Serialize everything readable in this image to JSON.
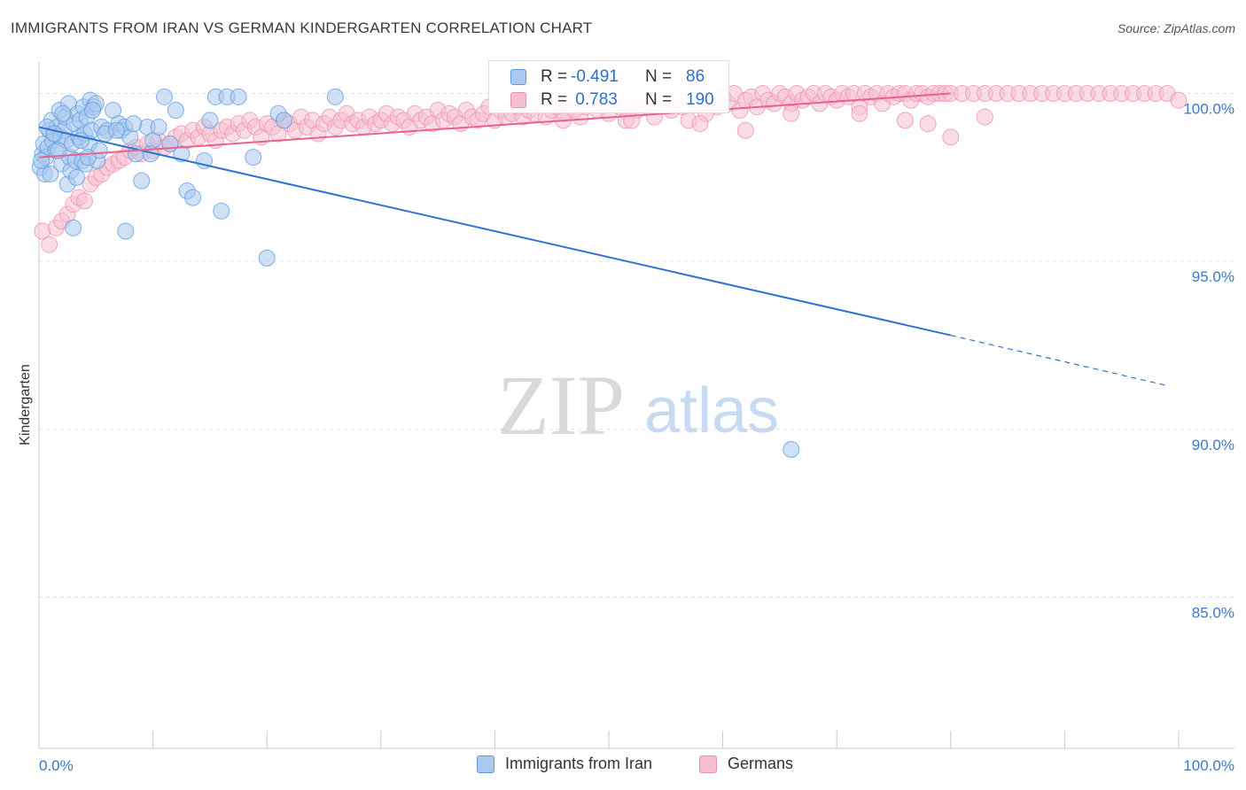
{
  "title": "IMMIGRANTS FROM IRAN VS GERMAN KINDERGARTEN CORRELATION CHART",
  "source": "Source: ZipAtlas.com",
  "watermark": {
    "zip": "ZIP",
    "atlas": "atlas"
  },
  "colors": {
    "blue": "#5b9be0",
    "blue_fill": "#a9c9ef",
    "blue_line": "#2f74d0",
    "pink": "#ee8fae",
    "pink_fill": "#f6bfd0",
    "pink_line": "#e8628d",
    "axis_label": "#3a78c9",
    "grid": "#e3e3e3"
  },
  "legend_top": [
    {
      "r_label": "R =",
      "r_value": "-0.491",
      "n_label": "N =",
      "n_value": "86"
    },
    {
      "r_label": "R =",
      "r_value": " 0.783",
      "n_label": "N =",
      "n_value": "190"
    }
  ],
  "legend_bottom": [
    "Immigrants from Iran",
    "Germans"
  ],
  "chart_data": {
    "type": "scatter",
    "title": "IMMIGRANTS FROM IRAN VS GERMAN KINDERGARTEN CORRELATION CHART",
    "xlabel": "",
    "ylabel": "Kindergarten",
    "x_tick_labels": [
      "0.0%",
      "100.0%"
    ],
    "y_tick_labels": [
      "100.0%",
      "95.0%",
      "90.0%",
      "85.0%"
    ],
    "xlim": [
      0,
      100
    ],
    "ylim": [
      80.5,
      100.7
    ],
    "grid": true,
    "legend_position": "top-center",
    "series": [
      {
        "name": "Immigrants from Iran",
        "color": "#5b9be0",
        "R": -0.491,
        "N": 86,
        "trend": {
          "x0": 0,
          "y0": 99.0,
          "x1": 80,
          "y1": 92.8,
          "dashed_to_x": 99,
          "dashed_to_y": 91.3
        },
        "points": [
          [
            0.1,
            97.8
          ],
          [
            0.3,
            98.2
          ],
          [
            0.4,
            98.5
          ],
          [
            0.5,
            97.6
          ],
          [
            0.6,
            98.1
          ],
          [
            0.8,
            98.4
          ],
          [
            0.9,
            98.9
          ],
          [
            1.1,
            99.2
          ],
          [
            1.2,
            98.6
          ],
          [
            1.4,
            98.8
          ],
          [
            1.5,
            98.3
          ],
          [
            1.6,
            99.0
          ],
          [
            1.8,
            99.5
          ],
          [
            1.9,
            98.7
          ],
          [
            2.0,
            97.9
          ],
          [
            2.2,
            98.9
          ],
          [
            2.3,
            99.3
          ],
          [
            2.4,
            98.6
          ],
          [
            2.5,
            97.3
          ],
          [
            2.6,
            99.7
          ],
          [
            2.7,
            98.1
          ],
          [
            2.8,
            97.7
          ],
          [
            2.9,
            98.5
          ],
          [
            3.0,
            96.0
          ],
          [
            3.1,
            99.1
          ],
          [
            3.2,
            98.0
          ],
          [
            3.3,
            97.5
          ],
          [
            3.4,
            99.4
          ],
          [
            3.5,
            98.7
          ],
          [
            3.6,
            99.2
          ],
          [
            3.8,
            98.0
          ],
          [
            3.9,
            99.6
          ],
          [
            4.0,
            98.8
          ],
          [
            4.1,
            97.9
          ],
          [
            4.2,
            99.3
          ],
          [
            4.4,
            98.5
          ],
          [
            4.5,
            99.8
          ],
          [
            4.6,
            98.9
          ],
          [
            4.8,
            99.6
          ],
          [
            5.0,
            99.7
          ],
          [
            5.1,
            98.0
          ],
          [
            5.3,
            98.3
          ],
          [
            5.5,
            99.0
          ],
          [
            6.0,
            98.9
          ],
          [
            6.5,
            99.5
          ],
          [
            7.0,
            99.1
          ],
          [
            7.2,
            98.9
          ],
          [
            7.5,
            99.0
          ],
          [
            7.6,
            95.9
          ],
          [
            8.0,
            98.7
          ],
          [
            8.5,
            98.2
          ],
          [
            9.0,
            97.4
          ],
          [
            9.5,
            99.0
          ],
          [
            10.0,
            98.6
          ],
          [
            10.5,
            99.0
          ],
          [
            11.0,
            99.9
          ],
          [
            11.5,
            98.5
          ],
          [
            12.0,
            99.5
          ],
          [
            12.5,
            98.2
          ],
          [
            13.0,
            97.1
          ],
          [
            13.5,
            96.9
          ],
          [
            14.5,
            98.0
          ],
          [
            15.0,
            99.2
          ],
          [
            15.5,
            99.9
          ],
          [
            16.0,
            96.5
          ],
          [
            16.5,
            99.9
          ],
          [
            17.5,
            99.9
          ],
          [
            18.8,
            98.1
          ],
          [
            20.0,
            95.1
          ],
          [
            21.0,
            99.4
          ],
          [
            21.5,
            99.2
          ],
          [
            26.0,
            99.9
          ],
          [
            66.0,
            89.4
          ],
          [
            0.2,
            98.0
          ],
          [
            0.7,
            99.0
          ],
          [
            1.0,
            97.6
          ],
          [
            1.3,
            98.8
          ],
          [
            1.7,
            98.3
          ],
          [
            2.1,
            99.4
          ],
          [
            3.7,
            98.6
          ],
          [
            4.3,
            98.1
          ],
          [
            4.7,
            99.5
          ],
          [
            5.8,
            98.8
          ],
          [
            6.8,
            98.9
          ],
          [
            8.3,
            99.1
          ],
          [
            9.8,
            98.2
          ]
        ]
      },
      {
        "name": "Germans",
        "color": "#ee8fae",
        "R": 0.783,
        "N": 190,
        "trend": {
          "x0": 0,
          "y0": 98.1,
          "x1": 80,
          "y1": 100.0
        },
        "points": [
          [
            0.3,
            95.9
          ],
          [
            0.9,
            95.5
          ],
          [
            1.5,
            96.0
          ],
          [
            2.0,
            96.2
          ],
          [
            2.5,
            96.4
          ],
          [
            3.0,
            96.7
          ],
          [
            3.5,
            96.9
          ],
          [
            4.0,
            96.8
          ],
          [
            4.5,
            97.3
          ],
          [
            5.0,
            97.5
          ],
          [
            5.5,
            97.6
          ],
          [
            6.0,
            97.8
          ],
          [
            6.5,
            97.9
          ],
          [
            7.0,
            98.0
          ],
          [
            7.5,
            98.1
          ],
          [
            8.0,
            98.3
          ],
          [
            8.5,
            98.4
          ],
          [
            9.0,
            98.2
          ],
          [
            9.5,
            98.5
          ],
          [
            10.0,
            98.3
          ],
          [
            10.5,
            98.6
          ],
          [
            11.0,
            98.4
          ],
          [
            11.5,
            98.5
          ],
          [
            12.0,
            98.7
          ],
          [
            12.5,
            98.8
          ],
          [
            13.0,
            98.6
          ],
          [
            13.5,
            98.9
          ],
          [
            14.0,
            98.7
          ],
          [
            14.5,
            99.0
          ],
          [
            15.0,
            98.8
          ],
          [
            15.5,
            98.6
          ],
          [
            16.0,
            98.9
          ],
          [
            16.5,
            99.0
          ],
          [
            17.0,
            98.8
          ],
          [
            17.5,
            99.1
          ],
          [
            18.0,
            98.9
          ],
          [
            18.5,
            99.2
          ],
          [
            19.0,
            99.0
          ],
          [
            19.5,
            98.7
          ],
          [
            20.0,
            99.1
          ],
          [
            20.5,
            99.0
          ],
          [
            21.0,
            98.8
          ],
          [
            21.5,
            99.2
          ],
          [
            22.0,
            99.1
          ],
          [
            22.5,
            98.9
          ],
          [
            23.0,
            99.3
          ],
          [
            23.5,
            99.0
          ],
          [
            24.0,
            99.2
          ],
          [
            24.5,
            98.8
          ],
          [
            25.0,
            99.1
          ],
          [
            25.5,
            99.3
          ],
          [
            26.0,
            99.0
          ],
          [
            26.5,
            99.2
          ],
          [
            27.0,
            99.4
          ],
          [
            27.5,
            99.1
          ],
          [
            28.0,
            99.2
          ],
          [
            28.5,
            99.0
          ],
          [
            29.0,
            99.3
          ],
          [
            29.5,
            99.1
          ],
          [
            30.0,
            99.2
          ],
          [
            30.5,
            99.4
          ],
          [
            31.0,
            99.1
          ],
          [
            31.5,
            99.3
          ],
          [
            32.0,
            99.2
          ],
          [
            32.5,
            99.0
          ],
          [
            33.0,
            99.4
          ],
          [
            33.5,
            99.2
          ],
          [
            34.0,
            99.3
          ],
          [
            34.5,
            99.1
          ],
          [
            35.0,
            99.5
          ],
          [
            35.5,
            99.2
          ],
          [
            36.0,
            99.4
          ],
          [
            36.5,
            99.3
          ],
          [
            37.0,
            99.1
          ],
          [
            37.5,
            99.5
          ],
          [
            38.0,
            99.3
          ],
          [
            38.5,
            99.2
          ],
          [
            39.0,
            99.4
          ],
          [
            39.5,
            99.6
          ],
          [
            40.0,
            99.2
          ],
          [
            40.5,
            99.5
          ],
          [
            41.0,
            99.3
          ],
          [
            41.5,
            99.4
          ],
          [
            42.0,
            99.6
          ],
          [
            42.5,
            99.3
          ],
          [
            43.0,
            99.5
          ],
          [
            43.5,
            99.4
          ],
          [
            44.0,
            99.7
          ],
          [
            44.5,
            99.3
          ],
          [
            45.0,
            99.5
          ],
          [
            45.5,
            99.6
          ],
          [
            46.0,
            99.4
          ],
          [
            46.5,
            99.7
          ],
          [
            47.0,
            99.5
          ],
          [
            47.5,
            99.3
          ],
          [
            48.0,
            99.6
          ],
          [
            48.5,
            99.8
          ],
          [
            49.0,
            99.5
          ],
          [
            49.5,
            99.7
          ],
          [
            50.0,
            99.4
          ],
          [
            50.5,
            99.8
          ],
          [
            51.0,
            99.6
          ],
          [
            51.5,
            99.2
          ],
          [
            52.0,
            99.7
          ],
          [
            52.5,
            99.5
          ],
          [
            53.0,
            99.8
          ],
          [
            53.5,
            99.6
          ],
          [
            54.0,
            99.3
          ],
          [
            54.5,
            99.9
          ],
          [
            55.0,
            99.7
          ],
          [
            55.5,
            99.5
          ],
          [
            56.0,
            99.8
          ],
          [
            56.5,
            99.6
          ],
          [
            57.0,
            99.2
          ],
          [
            57.5,
            99.9
          ],
          [
            58.0,
            99.7
          ],
          [
            58.5,
            99.4
          ],
          [
            59.0,
            99.8
          ],
          [
            59.5,
            99.6
          ],
          [
            60.0,
            99.9
          ],
          [
            60.5,
            99.7
          ],
          [
            61.0,
            100.0
          ],
          [
            61.5,
            99.5
          ],
          [
            62.0,
            99.8
          ],
          [
            62.5,
            99.9
          ],
          [
            63.0,
            99.6
          ],
          [
            63.5,
            100.0
          ],
          [
            64.0,
            99.8
          ],
          [
            64.5,
            99.7
          ],
          [
            65.0,
            100.0
          ],
          [
            65.5,
            99.9
          ],
          [
            66.0,
            99.7
          ],
          [
            66.5,
            100.0
          ],
          [
            67.0,
            99.8
          ],
          [
            67.5,
            99.9
          ],
          [
            68.0,
            100.0
          ],
          [
            68.5,
            99.7
          ],
          [
            69.0,
            100.0
          ],
          [
            69.5,
            99.9
          ],
          [
            70.0,
            99.8
          ],
          [
            70.5,
            100.0
          ],
          [
            71.0,
            99.9
          ],
          [
            71.5,
            100.0
          ],
          [
            72.0,
            99.6
          ],
          [
            72.5,
            100.0
          ],
          [
            73.0,
            99.9
          ],
          [
            73.5,
            100.0
          ],
          [
            74.0,
            99.7
          ],
          [
            74.5,
            100.0
          ],
          [
            75.0,
            99.9
          ],
          [
            75.5,
            100.0
          ],
          [
            76.0,
            100.0
          ],
          [
            76.5,
            99.8
          ],
          [
            77.0,
            100.0
          ],
          [
            77.5,
            100.0
          ],
          [
            78.0,
            99.9
          ],
          [
            78.5,
            100.0
          ],
          [
            79.0,
            100.0
          ],
          [
            79.5,
            100.0
          ],
          [
            80.0,
            100.0
          ],
          [
            81.0,
            100.0
          ],
          [
            82.0,
            100.0
          ],
          [
            83.0,
            100.0
          ],
          [
            84.0,
            100.0
          ],
          [
            85.0,
            100.0
          ],
          [
            86.0,
            100.0
          ],
          [
            87.0,
            100.0
          ],
          [
            88.0,
            100.0
          ],
          [
            89.0,
            100.0
          ],
          [
            90.0,
            100.0
          ],
          [
            91.0,
            100.0
          ],
          [
            92.0,
            100.0
          ],
          [
            93.0,
            100.0
          ],
          [
            94.0,
            100.0
          ],
          [
            95.0,
            100.0
          ],
          [
            96.0,
            100.0
          ],
          [
            97.0,
            100.0
          ],
          [
            98.0,
            100.0
          ],
          [
            99.0,
            100.0
          ],
          [
            100.0,
            99.8
          ],
          [
            46.0,
            99.2
          ],
          [
            52.0,
            99.2
          ],
          [
            58.0,
            99.1
          ],
          [
            62.0,
            98.9
          ],
          [
            66.0,
            99.4
          ],
          [
            72.0,
            99.4
          ],
          [
            76.0,
            99.2
          ],
          [
            78.0,
            99.1
          ],
          [
            80.0,
            98.7
          ],
          [
            83.0,
            99.3
          ]
        ]
      }
    ]
  }
}
